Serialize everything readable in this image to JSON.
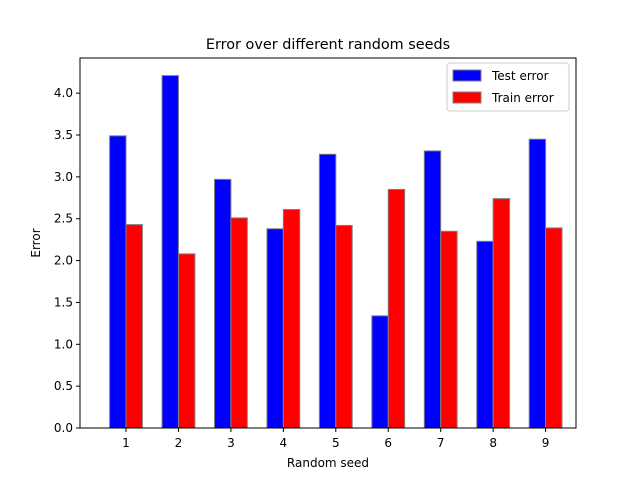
{
  "chart_data": {
    "type": "bar",
    "title": "Error over different random seeds",
    "xlabel": "Random seed",
    "ylabel": "Error",
    "categories": [
      "1",
      "2",
      "3",
      "4",
      "5",
      "6",
      "7",
      "8",
      "9"
    ],
    "series": [
      {
        "name": "Test error",
        "color": "#0000ff",
        "values": [
          3.49,
          4.21,
          2.97,
          2.38,
          3.27,
          1.34,
          3.31,
          2.23,
          3.45
        ]
      },
      {
        "name": "Train error",
        "color": "#ff0000",
        "values": [
          2.43,
          2.08,
          2.51,
          2.61,
          2.42,
          2.85,
          2.35,
          2.74,
          2.39
        ]
      }
    ],
    "ylim": [
      0,
      4.42
    ],
    "yticks": [
      "0.0",
      "0.5",
      "1.0",
      "1.5",
      "2.0",
      "2.5",
      "3.0",
      "3.5",
      "4.0"
    ],
    "legend": "top-right",
    "grid": false,
    "bar_edge_color": "#808080"
  }
}
